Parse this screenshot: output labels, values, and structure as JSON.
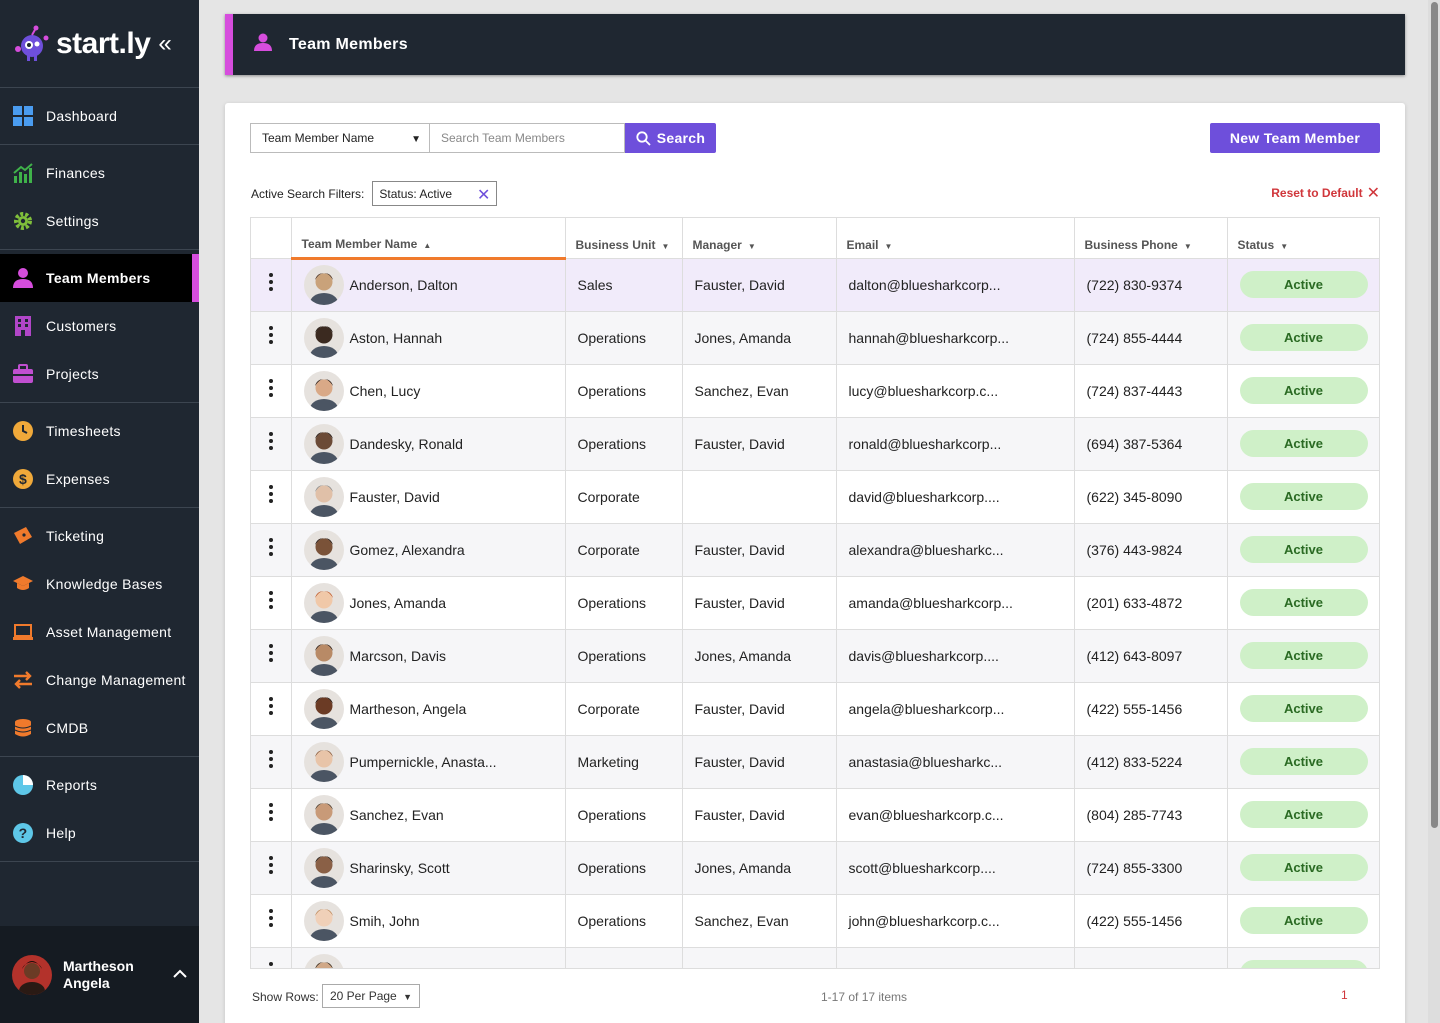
{
  "app": {
    "logo_text": "start.ly",
    "collapse_glyph": "«"
  },
  "sidebar": {
    "groups": [
      [
        {
          "label": "Dashboard",
          "icon": "dashboard-icon"
        }
      ],
      [
        {
          "label": "Finances",
          "icon": "finances-icon"
        },
        {
          "label": "Settings",
          "icon": "gear-icon"
        }
      ],
      [
        {
          "label": "Team Members",
          "icon": "person-icon",
          "active": true
        },
        {
          "label": "Customers",
          "icon": "building-icon"
        },
        {
          "label": "Projects",
          "icon": "briefcase-icon"
        }
      ],
      [
        {
          "label": "Timesheets",
          "icon": "clock-icon"
        },
        {
          "label": "Expenses",
          "icon": "dollar-icon"
        }
      ],
      [
        {
          "label": "Ticketing",
          "icon": "ticket-icon"
        },
        {
          "label": "Knowledge Bases",
          "icon": "graduation-cap-icon"
        },
        {
          "label": "Asset Management",
          "icon": "laptop-icon"
        },
        {
          "label": "Change Management",
          "icon": "arrows-exchange-icon"
        },
        {
          "label": "CMDB",
          "icon": "database-icon"
        }
      ],
      [
        {
          "label": "Reports",
          "icon": "pie-chart-icon"
        },
        {
          "label": "Help",
          "icon": "help-icon"
        }
      ]
    ],
    "user": {
      "first": "Martheson",
      "last": "Angela",
      "chevron": "^"
    }
  },
  "header": {
    "title": "Team Members"
  },
  "search": {
    "field_select": "Team Member Name",
    "placeholder": "Search Team Members",
    "button_label": "Search",
    "new_button_label": "New Team Member"
  },
  "filters": {
    "label": "Active Search Filters:",
    "chips": [
      "Status: Active"
    ],
    "reset_label": "Reset to Default"
  },
  "table": {
    "columns": [
      "Team Member Name",
      "Business Unit",
      "Manager",
      "Email",
      "Business Phone",
      "Status"
    ],
    "sorted_column": "Team Member Name",
    "rows": [
      {
        "name": "Anderson, Dalton",
        "unit": "Sales",
        "manager": "Fauster, David",
        "email": "dalton@bluesharkcorp...",
        "phone": "(722) 830-9374",
        "status": "Active"
      },
      {
        "name": "Aston, Hannah",
        "unit": "Operations",
        "manager": "Jones, Amanda",
        "email": "hannah@bluesharkcorp...",
        "phone": "(724) 855-4444",
        "status": "Active"
      },
      {
        "name": "Chen, Lucy",
        "unit": "Operations",
        "manager": "Sanchez, Evan",
        "email": "lucy@bluesharkcorp.c...",
        "phone": "(724) 837-4443",
        "status": "Active"
      },
      {
        "name": "Dandesky, Ronald",
        "unit": "Operations",
        "manager": "Fauster, David",
        "email": "ronald@bluesharkcorp...",
        "phone": "(694) 387-5364",
        "status": "Active"
      },
      {
        "name": "Fauster, David",
        "unit": "Corporate",
        "manager": "",
        "email": "david@bluesharkcorp....",
        "phone": "(622) 345-8090",
        "status": "Active"
      },
      {
        "name": "Gomez, Alexandra",
        "unit": "Corporate",
        "manager": "Fauster, David",
        "email": "alexandra@bluesharkc...",
        "phone": "(376) 443-9824",
        "status": "Active"
      },
      {
        "name": "Jones, Amanda",
        "unit": "Operations",
        "manager": "Fauster, David",
        "email": "amanda@bluesharkcorp...",
        "phone": "(201) 633-4872",
        "status": "Active"
      },
      {
        "name": "Marcson, Davis",
        "unit": "Operations",
        "manager": "Jones, Amanda",
        "email": "davis@bluesharkcorp....",
        "phone": "(412) 643-8097",
        "status": "Active"
      },
      {
        "name": "Martheson, Angela",
        "unit": "Corporate",
        "manager": "Fauster, David",
        "email": "angela@bluesharkcorp...",
        "phone": "(422) 555-1456",
        "status": "Active"
      },
      {
        "name": "Pumpernickle, Anasta...",
        "unit": "Marketing",
        "manager": "Fauster, David",
        "email": "anastasia@bluesharkc...",
        "phone": "(412) 833-5224",
        "status": "Active"
      },
      {
        "name": "Sanchez, Evan",
        "unit": "Operations",
        "manager": "Fauster, David",
        "email": "evan@bluesharkcorp.c...",
        "phone": "(804) 285-7743",
        "status": "Active"
      },
      {
        "name": "Sharinsky, Scott",
        "unit": "Operations",
        "manager": "Jones, Amanda",
        "email": "scott@bluesharkcorp....",
        "phone": "(724) 855-3300",
        "status": "Active"
      },
      {
        "name": "Smih, John",
        "unit": "Operations",
        "manager": "Sanchez, Evan",
        "email": "john@bluesharkcorp.c...",
        "phone": "(422) 555-1456",
        "status": "Active"
      },
      {
        "name": "",
        "unit": "",
        "manager": "",
        "email": "",
        "phone": "",
        "status": "Active"
      }
    ]
  },
  "footer": {
    "show_rows_label": "Show Rows:",
    "rows_per_page": "20 Per Page",
    "count_text": "1-17 of 17 items",
    "page": "1"
  },
  "colors": {
    "accent": "#6e4fdb",
    "highlight": "#d64ddd",
    "sidebar_bg": "#1f2731",
    "active_badge": "#cff0c8",
    "reset_red": "#d0363b",
    "sort_underline": "#f07a2c"
  }
}
